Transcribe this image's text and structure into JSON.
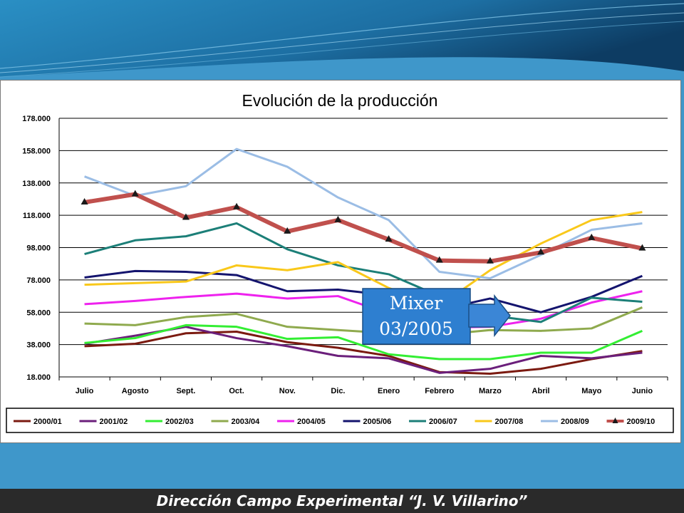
{
  "footer": {
    "text": "Dirección Campo Experimental “J. V. Villarino”"
  },
  "callout": {
    "line1": "Mixer",
    "line2": "03/2005"
  },
  "chart_data": {
    "type": "line",
    "title": "Evolución de la producción",
    "xlabel": "",
    "ylabel": "",
    "categories": [
      "Julio",
      "Agosto",
      "Sept.",
      "Oct.",
      "Nov.",
      "Dic.",
      "Enero",
      "Febrero",
      "Marzo",
      "Abril",
      "Mayo",
      "Junio"
    ],
    "ylim": [
      18000,
      178000
    ],
    "yticks": [
      "178.000",
      "158.000",
      "138.000",
      "118.000",
      "98.000",
      "78.000",
      "58.000",
      "38.000",
      "18.000"
    ],
    "ytick_values": [
      178000,
      158000,
      138000,
      118000,
      98000,
      78000,
      58000,
      38000,
      18000
    ],
    "grid": "horizontal",
    "legend_position": "bottom",
    "series": [
      {
        "name": "2000/01",
        "color": "#7b1a10",
        "values": [
          37000,
          38500,
          45000,
          46000,
          39500,
          36000,
          31000,
          21000,
          20000,
          23000,
          29000,
          34000
        ]
      },
      {
        "name": "2001/02",
        "color": "#6b1f7b",
        "values": [
          38500,
          43500,
          49000,
          42000,
          37000,
          31000,
          29500,
          20500,
          23000,
          31000,
          29500,
          33000
        ]
      },
      {
        "name": "2002/03",
        "color": "#33ee33",
        "values": [
          39000,
          42000,
          50000,
          49000,
          41500,
          42500,
          32000,
          29000,
          29000,
          33000,
          33000,
          46500
        ]
      },
      {
        "name": "2003/04",
        "color": "#8faa4e",
        "values": [
          51000,
          50000,
          55000,
          57000,
          49000,
          47000,
          45000,
          44000,
          47000,
          46500,
          48000,
          61000
        ]
      },
      {
        "name": "2004/05",
        "color": "#ee22ee",
        "values": [
          63000,
          65000,
          67500,
          69500,
          66500,
          68000,
          57000,
          48500,
          49000,
          54000,
          64000,
          71000
        ]
      },
      {
        "name": "2005/06",
        "color": "#14146e",
        "values": [
          79500,
          83500,
          83000,
          81000,
          71000,
          72000,
          68500,
          59500,
          66500,
          58000,
          67500,
          80500
        ]
      },
      {
        "name": "2006/07",
        "color": "#1c7f78",
        "values": [
          94000,
          102500,
          105000,
          113000,
          97000,
          87000,
          81500,
          68000,
          56000,
          52000,
          67000,
          64500
        ]
      },
      {
        "name": "2007/08",
        "color": "#f9c81a",
        "values": [
          75000,
          76000,
          77000,
          87000,
          84000,
          89000,
          73000,
          62000,
          84000,
          100500,
          115000,
          120000
        ]
      },
      {
        "name": "2008/09",
        "color": "#9bbde5",
        "values": [
          142000,
          130000,
          136000,
          159000,
          148000,
          129000,
          115000,
          83000,
          79000,
          93500,
          109000,
          113000
        ]
      },
      {
        "name": "2009/10",
        "color": "#c0504d",
        "marker": "triangle",
        "values": [
          126000,
          131000,
          116500,
          123000,
          108000,
          115000,
          103000,
          90000,
          89500,
          95000,
          104000,
          97500
        ]
      }
    ]
  }
}
